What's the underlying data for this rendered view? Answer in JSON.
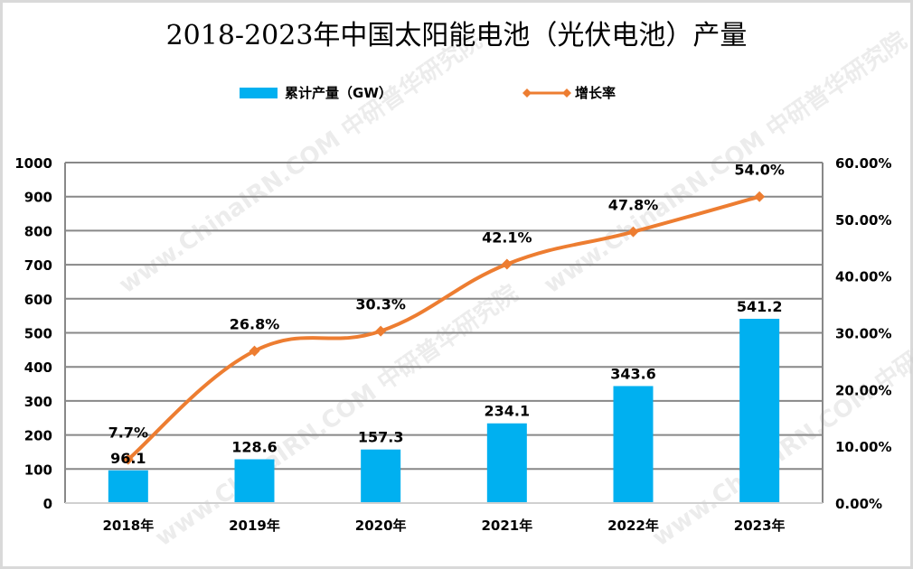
{
  "chart_data": {
    "type": "bar+line",
    "title": "2018-2023年中国太阳能电池（光伏电池）产量",
    "categories": [
      "2018年",
      "2019年",
      "2020年",
      "2021年",
      "2022年",
      "2023年"
    ],
    "series": [
      {
        "name": "累计产量（GW）",
        "type": "bar",
        "axis": "left",
        "color": "#00b0f0",
        "values": [
          96.1,
          128.6,
          157.3,
          234.1,
          343.6,
          541.2
        ],
        "labels": [
          "96.1",
          "128.6",
          "157.3",
          "234.1",
          "343.6",
          "541.2"
        ]
      },
      {
        "name": "增长率",
        "type": "line",
        "axis": "right",
        "color": "#ed7d31",
        "values": [
          7.7,
          26.8,
          30.3,
          42.1,
          47.8,
          54.0
        ],
        "labels": [
          "7.7%",
          "26.8%",
          "30.3%",
          "42.1%",
          "47.8%",
          "54.0%"
        ]
      }
    ],
    "y_left": {
      "range": [
        0,
        1000
      ],
      "ticks": [
        0,
        100,
        200,
        300,
        400,
        500,
        600,
        700,
        800,
        900,
        1000
      ],
      "tick_labels": [
        "0",
        "100",
        "200",
        "300",
        "400",
        "500",
        "600",
        "700",
        "800",
        "900",
        "1000"
      ]
    },
    "y_right": {
      "range": [
        0,
        60
      ],
      "ticks": [
        0,
        10,
        20,
        30,
        40,
        50,
        60
      ],
      "tick_labels": [
        "0.00%",
        "10.00%",
        "20.00%",
        "30.00%",
        "40.00%",
        "50.00%",
        "60.00%"
      ]
    },
    "grid": true,
    "legend_position": "top",
    "watermark": "www.chinaIRN.com 中研普华研究院"
  }
}
